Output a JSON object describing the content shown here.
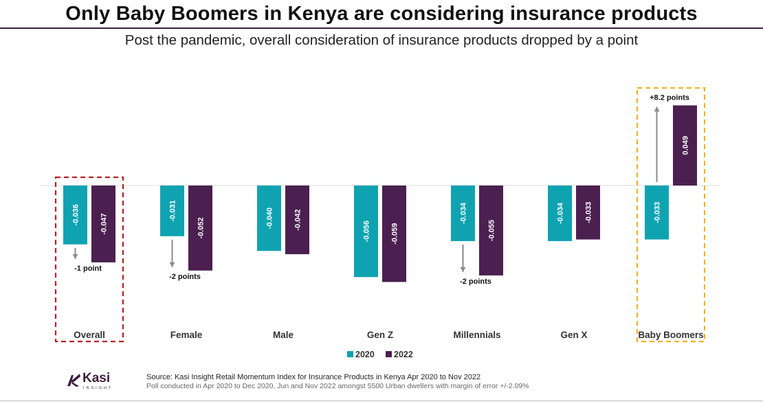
{
  "header": {
    "title": "Only Baby Boomers in Kenya are considering insurance products",
    "subtitle": "Post the pandemic, overall consideration of insurance products dropped by a point"
  },
  "chart_data": {
    "type": "bar",
    "categories": [
      "Overall",
      "Female",
      "Male",
      "Gen Z",
      "Millennials",
      "Gen X",
      "Baby Boomers"
    ],
    "series": [
      {
        "name": "2020",
        "color": "#0fa3b1",
        "values": [
          -0.036,
          -0.031,
          -0.04,
          -0.056,
          -0.034,
          -0.034,
          -0.033
        ],
        "labels": [
          "-0.036",
          "-0.031",
          "-0.040",
          "-0.056",
          "-0.034",
          "-0.034",
          "-0.033"
        ]
      },
      {
        "name": "2022",
        "color": "#4b2050",
        "values": [
          -0.047,
          -0.052,
          -0.042,
          -0.059,
          -0.055,
          -0.033,
          0.049
        ],
        "labels": [
          "-0.047",
          "-0.052",
          "-0.042",
          "-0.059",
          "-0.055",
          "-0.033",
          "0.049"
        ]
      }
    ],
    "ylim": [
      -0.06,
      0.05
    ],
    "annotations": [
      {
        "category": "Overall",
        "text": "-1 point",
        "direction": "down"
      },
      {
        "category": "Female",
        "text": "-2 points",
        "direction": "down"
      },
      {
        "category": "Millennials",
        "text": "-2 points",
        "direction": "down"
      },
      {
        "category": "Baby Boomers",
        "text": "+8.2 points",
        "direction": "up"
      }
    ],
    "highlights": [
      {
        "category": "Overall",
        "style": "dashed",
        "color": "#b52025"
      },
      {
        "category": "Baby Boomers",
        "style": "dashed",
        "color": "#f2b21c"
      }
    ],
    "legend": "bottom-center"
  },
  "footer": {
    "source": "Source: Kasi Insight Retail Momentum Index for Insurance Products in Kenya Apr 2020 to Nov 2022",
    "note": "Poll conducted in Apr 2020 to Dec 2020, Jun and Nov 2022 amongst 5500 Urban dwellers with margin of error +/-2.09%"
  },
  "logo": {
    "name": "Kasi",
    "tagline": "INSIGHT",
    "color": "#3d1e3c"
  }
}
